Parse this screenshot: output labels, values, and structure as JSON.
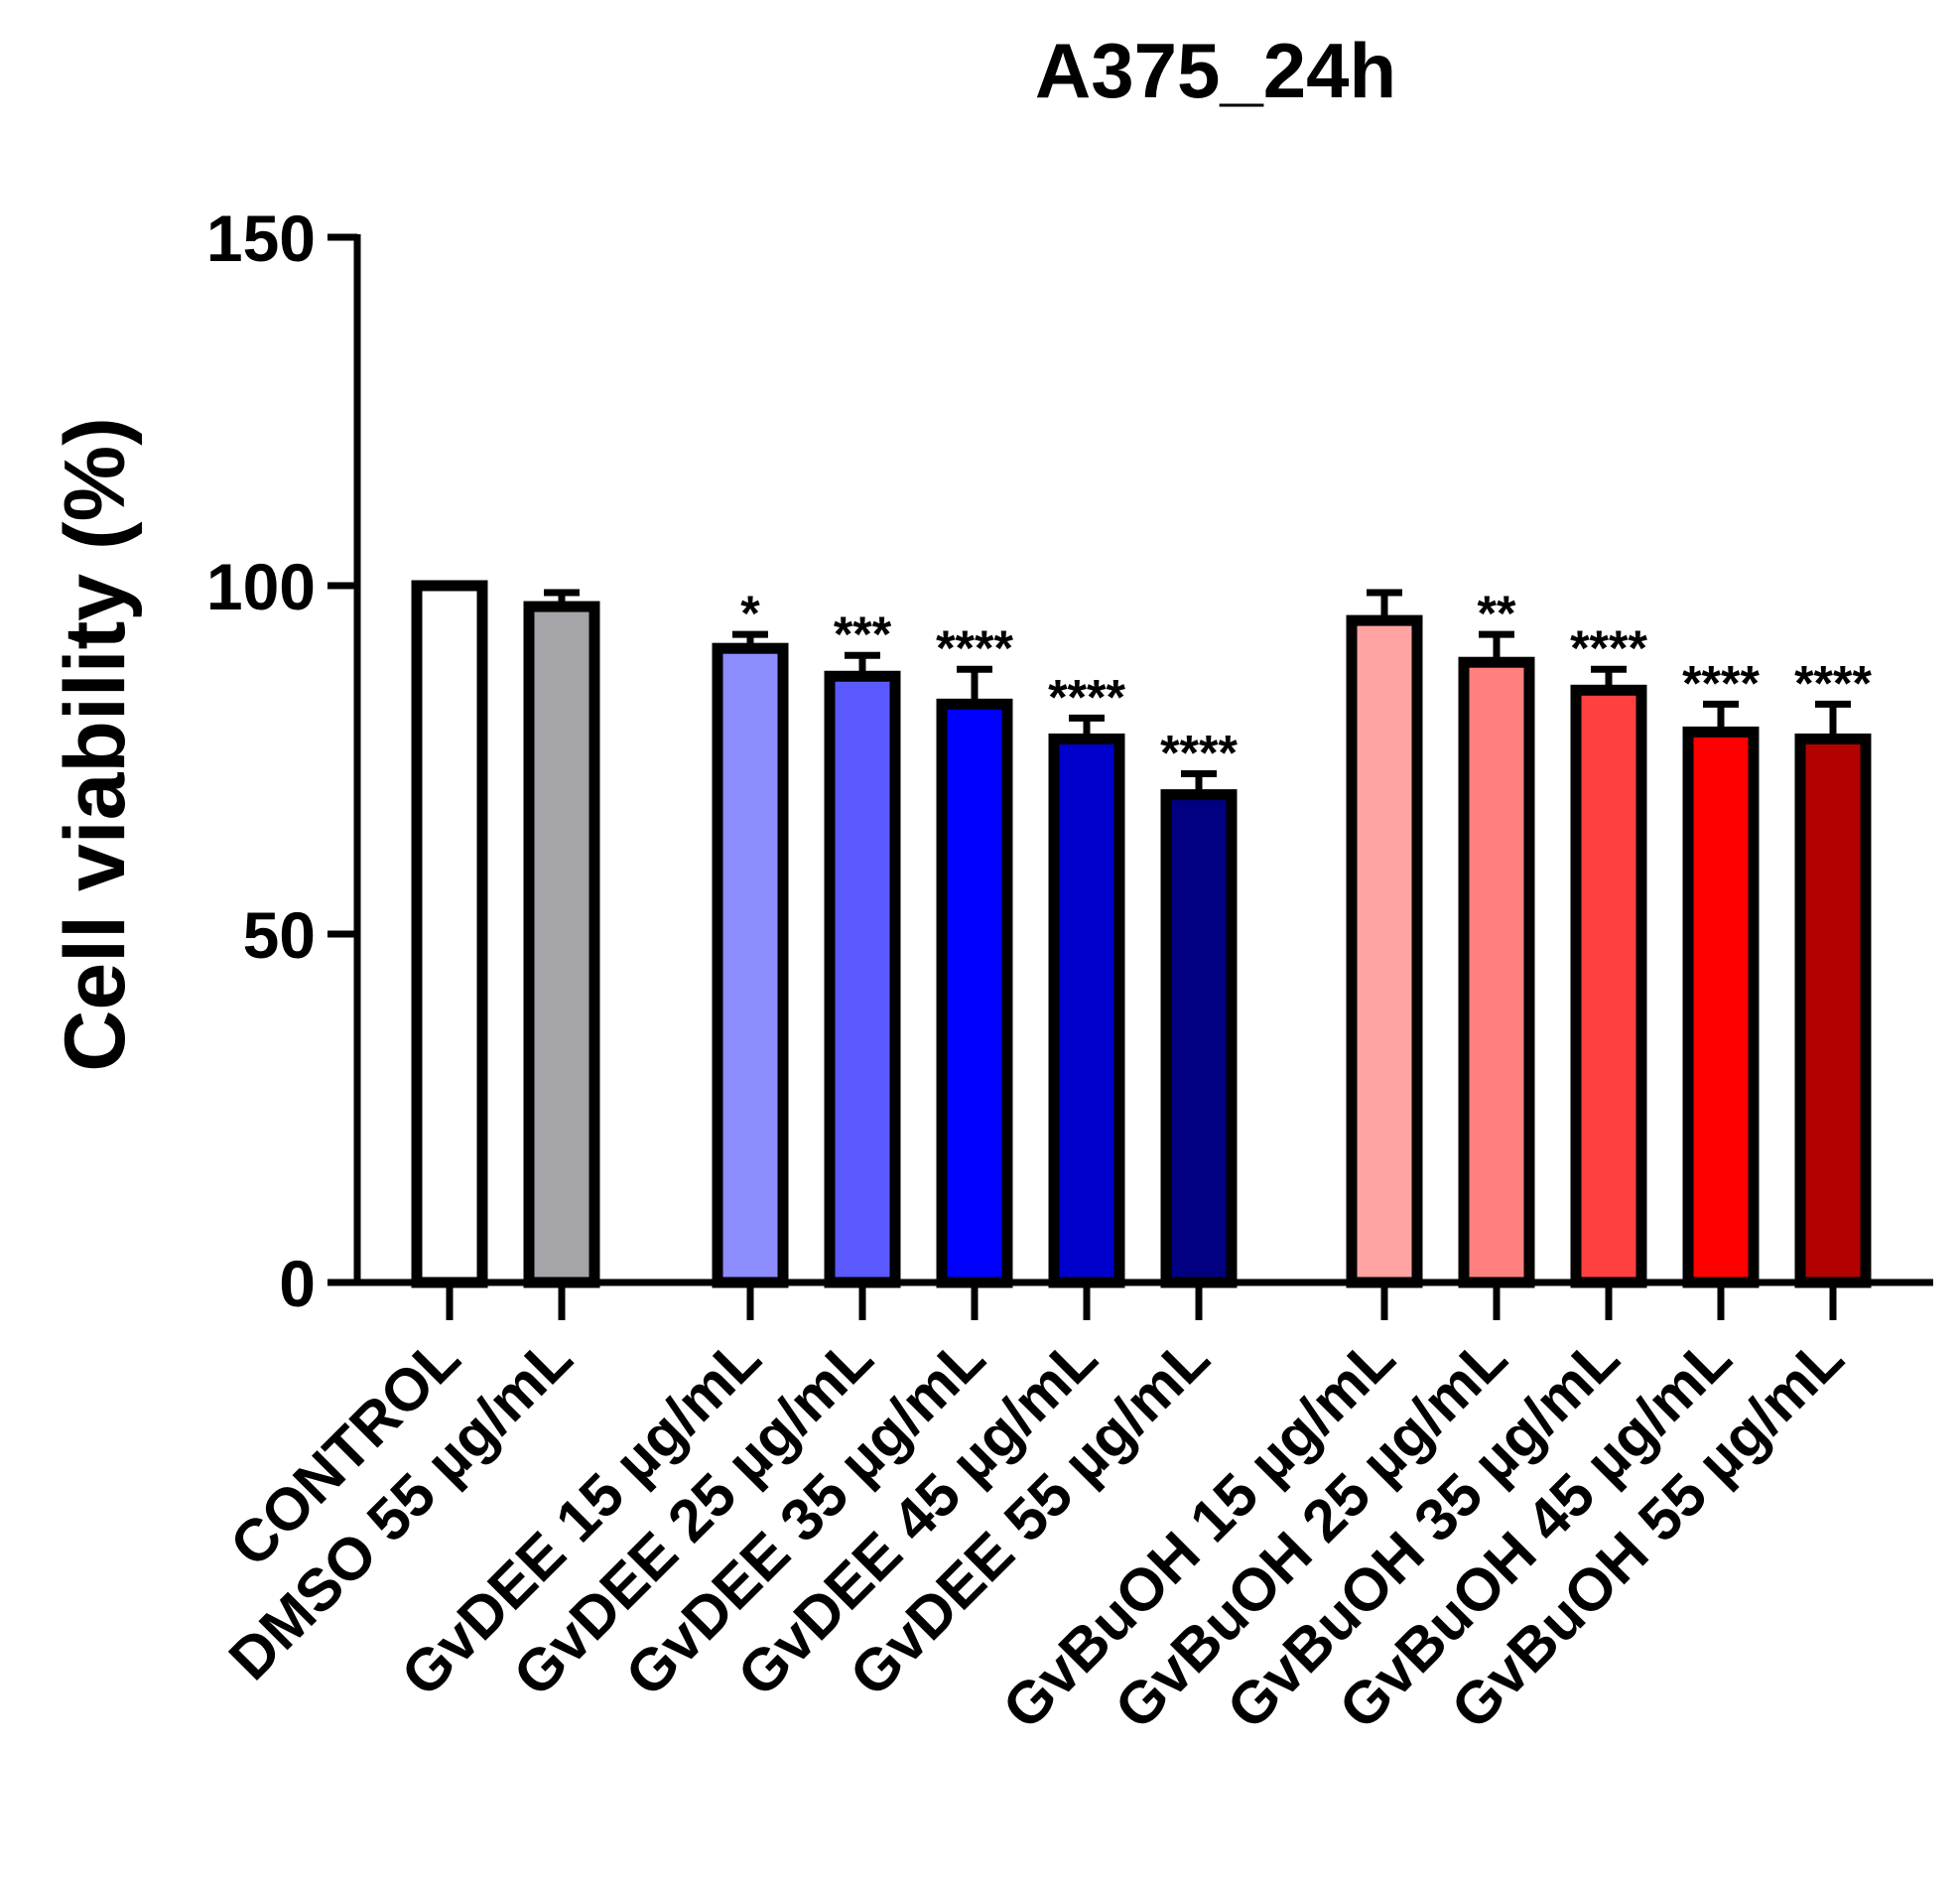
{
  "chart_data": {
    "type": "bar",
    "title": "A375_24h",
    "xlabel": "",
    "ylabel": "Cell viability (%)",
    "ylim": [
      0,
      150
    ],
    "yticks": [
      "0",
      "50",
      "100",
      "150"
    ],
    "categories": [
      "CONTROL",
      "DMSO 55 µg/mL",
      "GvDEE 15 µg/mL",
      "GvDEE 25 µg/mL",
      "GvDEE 35 µg/mL",
      "GvDEE 45 µg/mL",
      "GvDEE 55 µg/mL",
      "GvBuOH 15 µg/mL",
      "GvBuOH 25 µg/mL",
      "GvBuOH 35 µg/mL",
      "GvBuOH 45 µg/mL",
      "GvBuOH 55 µg/mL"
    ],
    "values": [
      100,
      97,
      91,
      87,
      83,
      78,
      70,
      95,
      89,
      85,
      79,
      78
    ],
    "errors": [
      0,
      2,
      2,
      3,
      5,
      3,
      3,
      4,
      4,
      3,
      4,
      5
    ],
    "significance": [
      "",
      "",
      "*",
      "***",
      "****",
      "****",
      "****",
      "",
      "**",
      "****",
      "****",
      "****"
    ],
    "colors": [
      "#ffffff",
      "#a5a4a9",
      "#8d8dff",
      "#5a5aff",
      "#0000ff",
      "#0000cc",
      "#000080",
      "#ffa3a3",
      "#ff7f7f",
      "#ff4040",
      "#ff0000",
      "#b30000"
    ],
    "grid": false,
    "legend": "none"
  }
}
